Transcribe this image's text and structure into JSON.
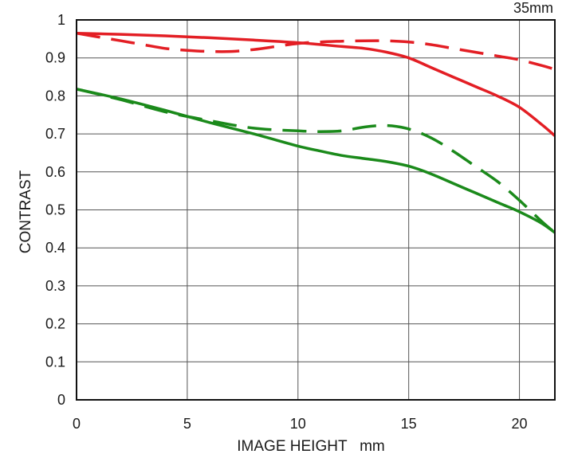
{
  "chart_data": {
    "type": "line",
    "corner_label": "35mm",
    "xlabel": "IMAGE HEIGHT   mm",
    "ylabel": "CONTRAST",
    "xlim": [
      0,
      21.6
    ],
    "ylim": [
      0,
      1
    ],
    "x_ticks": [
      0,
      5,
      10,
      15,
      20
    ],
    "x_tick_labels": [
      "0",
      "5",
      "10",
      "15",
      "20"
    ],
    "y_ticks": [
      0,
      0.1,
      0.2,
      0.3,
      0.4,
      0.5,
      0.6,
      0.7,
      0.8,
      0.9,
      1
    ],
    "y_tick_labels": [
      "0",
      "0.1",
      "0.2",
      "0.3",
      "0.4",
      "0.5",
      "0.6",
      "0.7",
      "0.8",
      "0.9",
      "1"
    ],
    "grid": true,
    "series": [
      {
        "color": "#e31e24",
        "dashed": false,
        "points": [
          [
            0,
            0.965
          ],
          [
            2,
            0.962
          ],
          [
            4,
            0.958
          ],
          [
            6,
            0.953
          ],
          [
            8,
            0.947
          ],
          [
            10,
            0.94
          ],
          [
            12,
            0.93
          ],
          [
            13,
            0.925
          ],
          [
            14,
            0.915
          ],
          [
            15,
            0.9
          ],
          [
            16,
            0.875
          ],
          [
            17,
            0.85
          ],
          [
            18,
            0.825
          ],
          [
            19,
            0.8
          ],
          [
            20,
            0.77
          ],
          [
            21,
            0.725
          ],
          [
            21.6,
            0.695
          ]
        ]
      },
      {
        "color": "#e31e24",
        "dashed": true,
        "points": [
          [
            0,
            0.965
          ],
          [
            1,
            0.955
          ],
          [
            2,
            0.945
          ],
          [
            3,
            0.935
          ],
          [
            4,
            0.925
          ],
          [
            5,
            0.92
          ],
          [
            6,
            0.917
          ],
          [
            7,
            0.917
          ],
          [
            8,
            0.922
          ],
          [
            9,
            0.93
          ],
          [
            10,
            0.938
          ],
          [
            11,
            0.942
          ],
          [
            12,
            0.944
          ],
          [
            13,
            0.945
          ],
          [
            14,
            0.945
          ],
          [
            15,
            0.942
          ],
          [
            16,
            0.935
          ],
          [
            17,
            0.925
          ],
          [
            18,
            0.915
          ],
          [
            19,
            0.905
          ],
          [
            20,
            0.895
          ],
          [
            21,
            0.88
          ],
          [
            21.6,
            0.87
          ]
        ]
      },
      {
        "color": "#1b8a1b",
        "dashed": false,
        "points": [
          [
            0,
            0.818
          ],
          [
            2,
            0.792
          ],
          [
            4,
            0.762
          ],
          [
            6,
            0.73
          ],
          [
            8,
            0.7
          ],
          [
            10,
            0.668
          ],
          [
            11,
            0.655
          ],
          [
            12,
            0.643
          ],
          [
            13,
            0.635
          ],
          [
            14,
            0.627
          ],
          [
            15,
            0.615
          ],
          [
            16,
            0.595
          ],
          [
            17,
            0.57
          ],
          [
            18,
            0.545
          ],
          [
            19,
            0.52
          ],
          [
            20,
            0.495
          ],
          [
            21,
            0.465
          ],
          [
            21.6,
            0.44
          ]
        ]
      },
      {
        "color": "#1b8a1b",
        "dashed": true,
        "points": [
          [
            0,
            0.818
          ],
          [
            2,
            0.79
          ],
          [
            4,
            0.758
          ],
          [
            6,
            0.735
          ],
          [
            8,
            0.715
          ],
          [
            10,
            0.708
          ],
          [
            11,
            0.706
          ],
          [
            12,
            0.708
          ],
          [
            13,
            0.718
          ],
          [
            14,
            0.722
          ],
          [
            15,
            0.713
          ],
          [
            16,
            0.69
          ],
          [
            17,
            0.655
          ],
          [
            18,
            0.615
          ],
          [
            19,
            0.575
          ],
          [
            20,
            0.525
          ],
          [
            21,
            0.47
          ],
          [
            21.6,
            0.44
          ]
        ]
      }
    ]
  }
}
